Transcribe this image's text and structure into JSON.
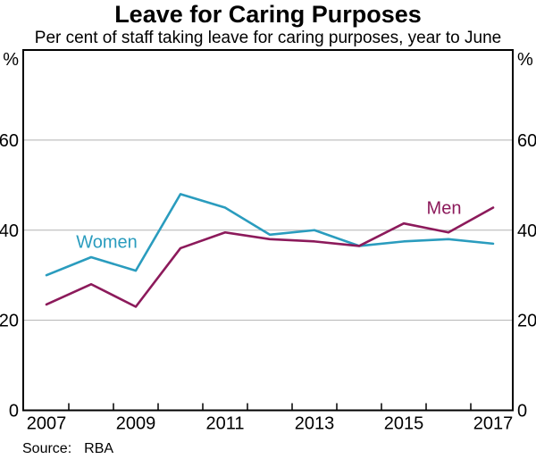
{
  "header": {
    "title": "Leave for Caring Purposes",
    "subtitle": "Per cent of staff taking leave for caring purposes, year to June"
  },
  "chart_data": {
    "type": "line",
    "x": [
      2007,
      2008,
      2009,
      2010,
      2011,
      2012,
      2013,
      2014,
      2015,
      2016,
      2017
    ],
    "series": [
      {
        "name": "Women",
        "color": "#2A9CBE",
        "values": [
          30,
          34,
          31,
          48,
          45,
          39,
          40,
          36.5,
          37.5,
          38,
          37
        ]
      },
      {
        "name": "Men",
        "color": "#8C1A5B",
        "values": [
          23.5,
          28,
          23,
          36,
          39.5,
          38,
          37.5,
          36.5,
          41.5,
          39.5,
          45
        ]
      }
    ],
    "title": "Leave for Caring Purposes",
    "subtitle": "Per cent of staff taking leave for caring purposes, year to June",
    "xlabel": "",
    "ylabel": "%",
    "unit": "%",
    "ylim": [
      0,
      80
    ],
    "yticks": [
      0,
      20,
      40,
      60
    ],
    "xtick_labels": [
      "2007",
      "2009",
      "2011",
      "2013",
      "2015",
      "2017"
    ],
    "grid": true,
    "legend_position": "inline-labels",
    "annotations": [
      {
        "text": "Women",
        "x": 2008.35,
        "y": 37.5,
        "color": "#2A9CBE"
      },
      {
        "text": "Men",
        "x": 2015.9,
        "y": 45.0,
        "color": "#8C1A5B"
      }
    ],
    "colors": {
      "axis": "#000000",
      "gridline": "#b2b2b2",
      "women_line": "#2A9CBE",
      "men_line": "#8C1A5B"
    }
  },
  "source": {
    "label": "Source:",
    "value": "RBA"
  }
}
